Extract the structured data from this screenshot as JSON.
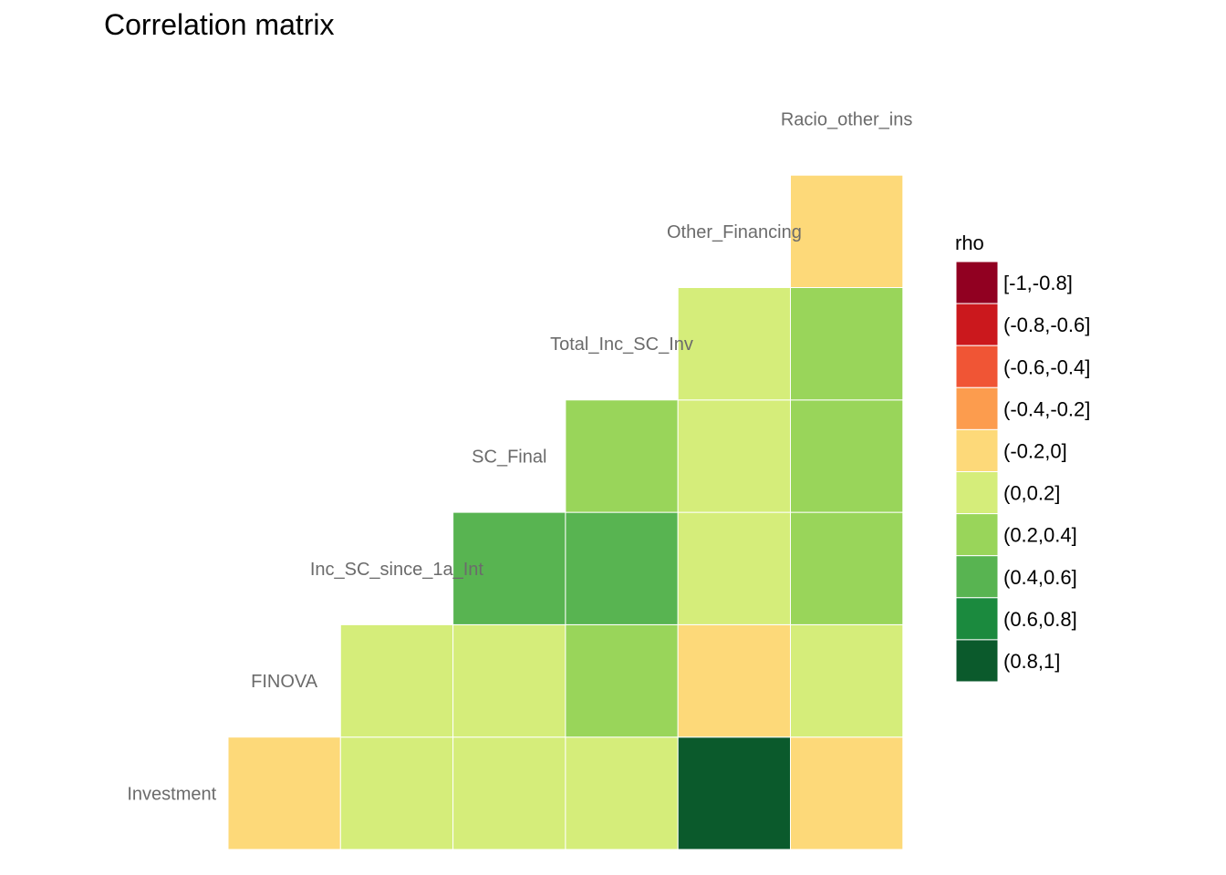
{
  "chart_data": {
    "type": "heatmap",
    "title": "Correlation matrix",
    "variables": [
      "Investment",
      "FINOVA",
      "Inc_SC_since_1a_Int",
      "SC_Final",
      "Total_Inc_SC_Inv",
      "Other_Financing",
      "Racio_other_ins"
    ],
    "cells": [
      {
        "row": "Investment",
        "col": "FINOVA",
        "bin": "(-0.2,0]"
      },
      {
        "row": "Investment",
        "col": "Inc_SC_since_1a_Int",
        "bin": "(0,0.2]"
      },
      {
        "row": "Investment",
        "col": "SC_Final",
        "bin": "(0,0.2]"
      },
      {
        "row": "Investment",
        "col": "Total_Inc_SC_Inv",
        "bin": "(0,0.2]"
      },
      {
        "row": "Investment",
        "col": "Other_Financing",
        "bin": "(0.8,1]"
      },
      {
        "row": "Investment",
        "col": "Racio_other_ins",
        "bin": "(-0.2,0]"
      },
      {
        "row": "FINOVA",
        "col": "Inc_SC_since_1a_Int",
        "bin": "(0,0.2]"
      },
      {
        "row": "FINOVA",
        "col": "SC_Final",
        "bin": "(0,0.2]"
      },
      {
        "row": "FINOVA",
        "col": "Total_Inc_SC_Inv",
        "bin": "(0.2,0.4]"
      },
      {
        "row": "FINOVA",
        "col": "Other_Financing",
        "bin": "(-0.2,0]"
      },
      {
        "row": "FINOVA",
        "col": "Racio_other_ins",
        "bin": "(0,0.2]"
      },
      {
        "row": "Inc_SC_since_1a_Int",
        "col": "SC_Final",
        "bin": "(0.4,0.6]"
      },
      {
        "row": "Inc_SC_since_1a_Int",
        "col": "Total_Inc_SC_Inv",
        "bin": "(0.4,0.6]"
      },
      {
        "row": "Inc_SC_since_1a_Int",
        "col": "Other_Financing",
        "bin": "(0,0.2]"
      },
      {
        "row": "Inc_SC_since_1a_Int",
        "col": "Racio_other_ins",
        "bin": "(0.2,0.4]"
      },
      {
        "row": "SC_Final",
        "col": "Total_Inc_SC_Inv",
        "bin": "(0.2,0.4]"
      },
      {
        "row": "SC_Final",
        "col": "Other_Financing",
        "bin": "(0,0.2]"
      },
      {
        "row": "SC_Final",
        "col": "Racio_other_ins",
        "bin": "(0.2,0.4]"
      },
      {
        "row": "Total_Inc_SC_Inv",
        "col": "Other_Financing",
        "bin": "(0,0.2]"
      },
      {
        "row": "Total_Inc_SC_Inv",
        "col": "Racio_other_ins",
        "bin": "(0.2,0.4]"
      },
      {
        "row": "Other_Financing",
        "col": "Racio_other_ins",
        "bin": "(-0.2,0]"
      }
    ],
    "legend": {
      "title": "rho",
      "position": "right",
      "bins": [
        {
          "label": "[-1,-0.8]",
          "color": "#910021"
        },
        {
          "label": "(-0.8,-0.6]",
          "color": "#cb181d"
        },
        {
          "label": "(-0.6,-0.4]",
          "color": "#f05535"
        },
        {
          "label": "(-0.4,-0.2]",
          "color": "#fc9c4e"
        },
        {
          "label": "(-0.2,0]",
          "color": "#fdd979"
        },
        {
          "label": "(0,0.2]",
          "color": "#d5ed7a"
        },
        {
          "label": "(0.2,0.4]",
          "color": "#99d55a"
        },
        {
          "label": "(0.4,0.6]",
          "color": "#58b451"
        },
        {
          "label": "(0.6,0.8]",
          "color": "#1b8a3e"
        },
        {
          "label": "(0.8,1]",
          "color": "#0b5a2c"
        }
      ]
    }
  }
}
